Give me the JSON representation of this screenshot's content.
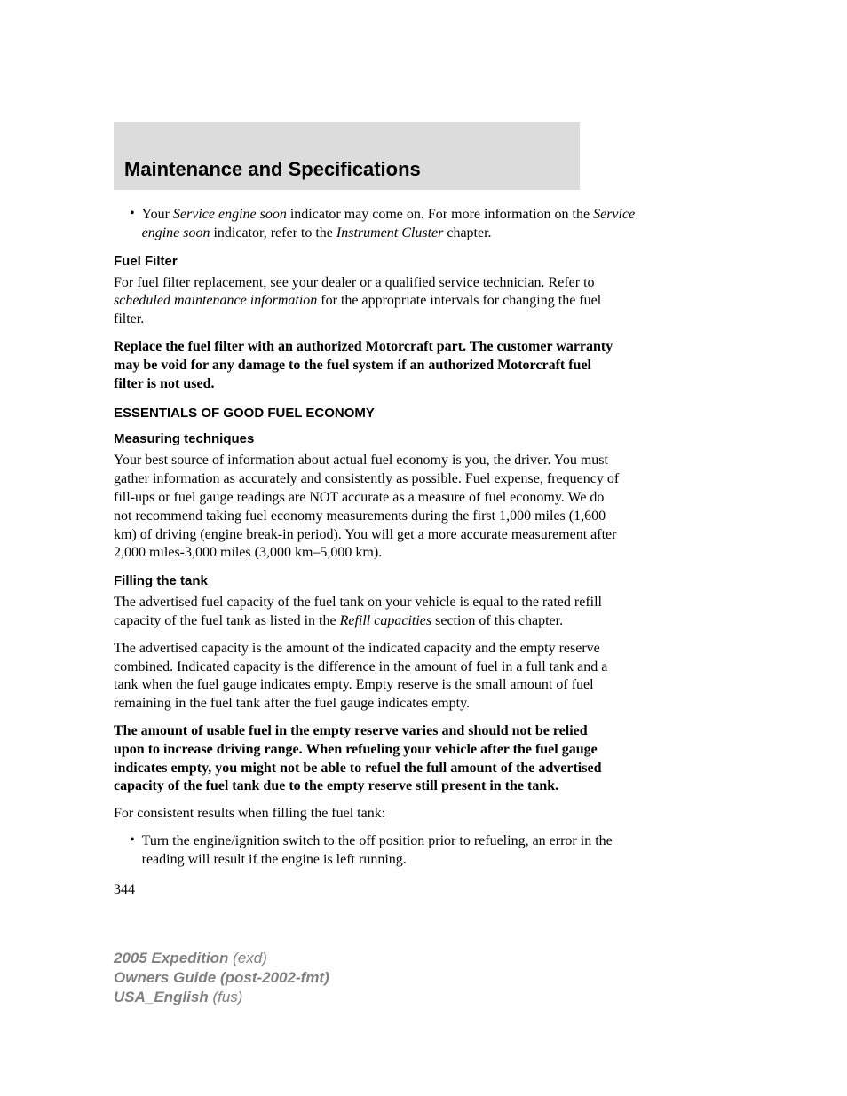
{
  "header": {
    "title": "Maintenance and Specifications"
  },
  "bullet1": {
    "prefix": "Your ",
    "italic1": "Service engine soon",
    "text1": " indicator may come on. For more information on the ",
    "italic2": "Service engine soon",
    "text2": " indicator, refer to the ",
    "italic3": "Instrument Cluster",
    "text3": " chapter."
  },
  "fuel_filter": {
    "heading": "Fuel Filter",
    "para1_text1": "For fuel filter replacement, see your dealer or a qualified service technician. Refer to ",
    "para1_italic": "scheduled maintenance information",
    "para1_text2": " for the appropriate intervals for changing the fuel filter.",
    "para2": "Replace the fuel filter with an authorized Motorcraft part. The customer warranty may be void for any damage to the fuel system if an authorized Motorcraft fuel filter is not used."
  },
  "essentials": {
    "heading": "ESSENTIALS OF GOOD FUEL ECONOMY"
  },
  "measuring": {
    "heading": "Measuring techniques",
    "para": "Your best source of information about actual fuel economy is you, the driver. You must gather information as accurately and consistently as possible. Fuel expense, frequency of fill-ups or fuel gauge readings are NOT accurate as a measure of fuel economy. We do not recommend taking fuel economy measurements during the first 1,000 miles (1,600 km) of driving (engine break-in period). You will get a more accurate measurement after 2,000 miles-3,000 miles (3,000 km–5,000 km)."
  },
  "filling": {
    "heading": "Filling the tank",
    "para1_text1": "The advertised fuel capacity of the fuel tank on your vehicle is equal to the rated refill capacity of the fuel tank as listed in the ",
    "para1_italic": "Refill capacities",
    "para1_text2": " section of this chapter.",
    "para2": "The advertised capacity is the amount of the indicated capacity and the empty reserve combined. Indicated capacity is the difference in the amount of fuel in a full tank and a tank when the fuel gauge indicates empty. Empty reserve is the small amount of fuel remaining in the fuel tank after the fuel gauge indicates empty.",
    "para3": "The amount of usable fuel in the empty reserve varies and should not be relied upon to increase driving range. When refueling your vehicle after the fuel gauge indicates empty, you might not be able to refuel the full amount of the advertised capacity of the fuel tank due to the empty reserve still present in the tank.",
    "para4": "For consistent results when filling the fuel tank:",
    "bullet": "Turn the engine/ignition switch to the off position prior to refueling, an error in the reading will result if the engine is left running."
  },
  "page_number": "344",
  "footer": {
    "line1_bold": "2005 Expedition ",
    "line1_reg": "(exd)",
    "line2": "Owners Guide (post-2002-fmt)",
    "line3_bold": "USA_English ",
    "line3_reg": "(fus)"
  }
}
